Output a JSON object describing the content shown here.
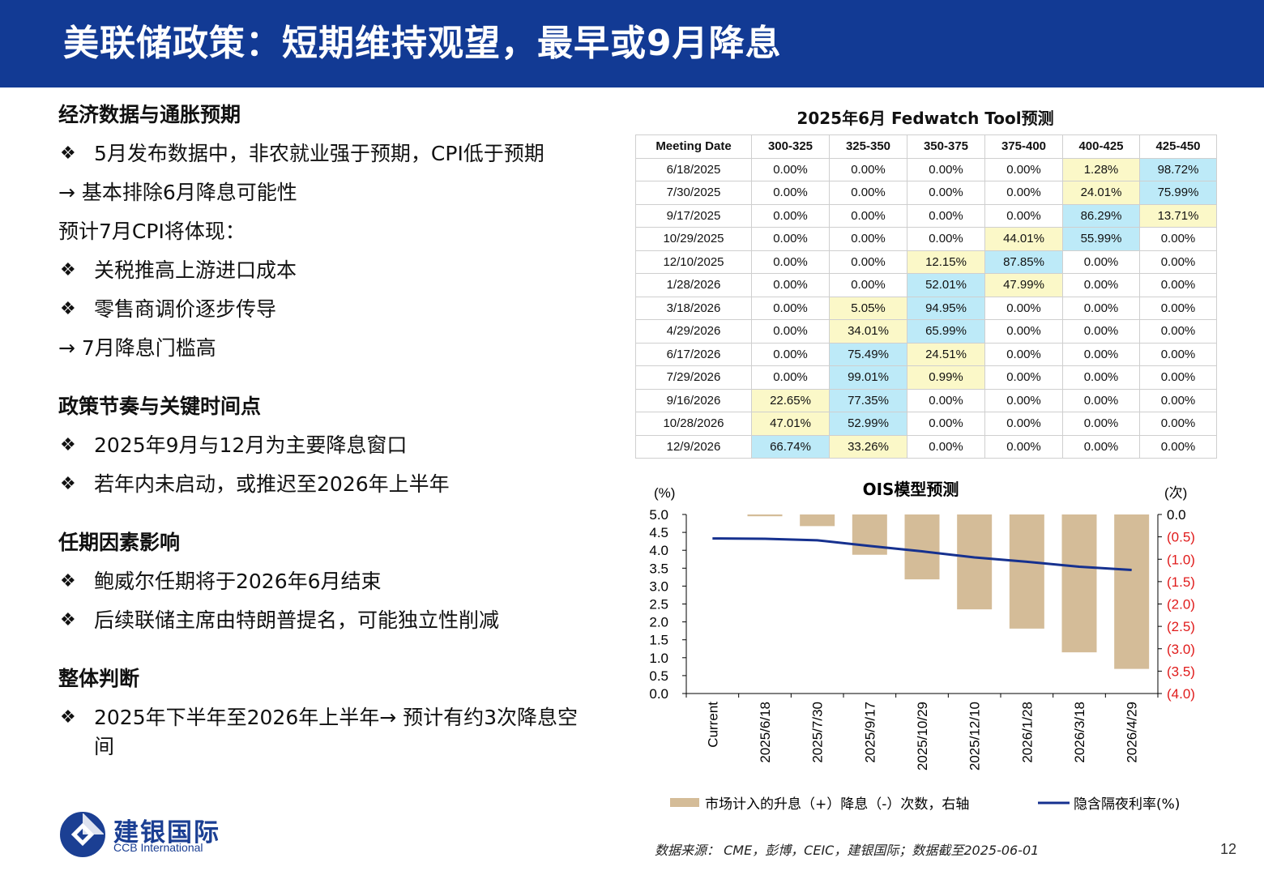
{
  "header": {
    "title": "美联储政策：短期维持观望，最早或9月降息"
  },
  "left": {
    "sec1": {
      "title": "经济数据与通胀预期",
      "b1": "5月发布数据中，非农就业强于预期，CPI低于预期",
      "l1": "→ 基本排除6月降息可能性",
      "l2": "预计7月CPI将体现：",
      "b2": "关税推高上游进口成本",
      "b3": " 零售商调价逐步传导",
      "l3": "→ 7月降息门槛高"
    },
    "sec2": {
      "title": "政策节奏与关键时间点",
      "b1": "2025年9月与12月为主要降息窗口",
      "b2": "若年内未启动，或推迟至2026年上半年"
    },
    "sec3": {
      "title": "任期因素影响",
      "b1": "鲍威尔任期将于2026年6月结束",
      "b2": "后续联储主席由特朗普提名，可能独立性削减"
    },
    "sec4": {
      "title": "整体判断",
      "b1": "2025年下半年至2026年上半年→ 预计有约3次降息空间"
    },
    "bullet_mark": "❖"
  },
  "fedwatch": {
    "title": "2025年6月 Fedwatch Tool预测",
    "headers": [
      "Meeting Date",
      "300-325",
      "325-350",
      "350-375",
      "375-400",
      "400-425",
      "425-450"
    ],
    "rows": [
      [
        "6/18/2025",
        "0.00%",
        "0.00%",
        "0.00%",
        "0.00%",
        "1.28%",
        "98.72%"
      ],
      [
        "7/30/2025",
        "0.00%",
        "0.00%",
        "0.00%",
        "0.00%",
        "24.01%",
        "75.99%"
      ],
      [
        "9/17/2025",
        "0.00%",
        "0.00%",
        "0.00%",
        "0.00%",
        "86.29%",
        "13.71%"
      ],
      [
        "10/29/2025",
        "0.00%",
        "0.00%",
        "0.00%",
        "44.01%",
        "55.99%",
        "0.00%"
      ],
      [
        "12/10/2025",
        "0.00%",
        "0.00%",
        "12.15%",
        "87.85%",
        "0.00%",
        "0.00%"
      ],
      [
        "1/28/2026",
        "0.00%",
        "0.00%",
        "52.01%",
        "47.99%",
        "0.00%",
        "0.00%"
      ],
      [
        "3/18/2026",
        "0.00%",
        "5.05%",
        "94.95%",
        "0.00%",
        "0.00%",
        "0.00%"
      ],
      [
        "4/29/2026",
        "0.00%",
        "34.01%",
        "65.99%",
        "0.00%",
        "0.00%",
        "0.00%"
      ],
      [
        "6/17/2026",
        "0.00%",
        "75.49%",
        "24.51%",
        "0.00%",
        "0.00%",
        "0.00%"
      ],
      [
        "7/29/2026",
        "0.00%",
        "99.01%",
        "0.99%",
        "0.00%",
        "0.00%",
        "0.00%"
      ],
      [
        "9/16/2026",
        "22.65%",
        "77.35%",
        "0.00%",
        "0.00%",
        "0.00%",
        "0.00%"
      ],
      [
        "10/28/2026",
        "47.01%",
        "52.99%",
        "0.00%",
        "0.00%",
        "0.00%",
        "0.00%"
      ],
      [
        "12/9/2026",
        "66.74%",
        "33.26%",
        "0.00%",
        "0.00%",
        "0.00%",
        "0.00%"
      ]
    ],
    "highlights": [
      [
        null,
        null,
        null,
        null,
        null,
        "y",
        "b"
      ],
      [
        null,
        null,
        null,
        null,
        null,
        "y",
        "b"
      ],
      [
        null,
        null,
        null,
        null,
        null,
        "b",
        "y"
      ],
      [
        null,
        null,
        null,
        null,
        "y",
        "b",
        null
      ],
      [
        null,
        null,
        null,
        "y",
        "b",
        null,
        null
      ],
      [
        null,
        null,
        null,
        "b",
        "y",
        null,
        null
      ],
      [
        null,
        null,
        "y",
        "b",
        null,
        null,
        null
      ],
      [
        null,
        null,
        "y",
        "b",
        null,
        null,
        null
      ],
      [
        null,
        null,
        "b",
        "y",
        null,
        null,
        null
      ],
      [
        null,
        null,
        "b",
        "y",
        null,
        null,
        null
      ],
      [
        null,
        "y",
        "b",
        null,
        null,
        null,
        null
      ],
      [
        null,
        "y",
        "b",
        null,
        null,
        null,
        null
      ],
      [
        null,
        "b",
        "y",
        null,
        null,
        null,
        null
      ]
    ],
    "highlight_colors": {
      "b": "#bdeaf8",
      "y": "#fbf8c8"
    }
  },
  "chart_data": {
    "type": "bar",
    "title": "OIS模型预测",
    "ylabel_left": "(%)",
    "ylabel_right": "(次)",
    "categories": [
      "Current",
      "2025/6/18",
      "2025/7/30",
      "2025/9/17",
      "2025/10/29",
      "2025/12/10",
      "2026/1/28",
      "2026/3/18",
      "2026/4/29"
    ],
    "series": [
      {
        "name": "市场计入的升息（+）降息（-）次数，右轴",
        "type": "bar",
        "axis": "right",
        "color": "#d4bc98",
        "values": [
          0,
          -0.04,
          -0.26,
          -0.9,
          -1.45,
          -2.12,
          -2.55,
          -3.08,
          -3.45
        ]
      },
      {
        "name": "隐含隔夜利率(%)",
        "type": "line",
        "axis": "left",
        "color": "#16318f",
        "values": [
          4.33,
          4.32,
          4.28,
          4.12,
          3.97,
          3.8,
          3.68,
          3.54,
          3.45
        ]
      }
    ],
    "ylim_left": [
      0,
      5.0
    ],
    "yticks_left": [
      "5.0",
      "4.5",
      "4.0",
      "3.5",
      "3.0",
      "2.5",
      "2.0",
      "1.5",
      "1.0",
      "0.5",
      "0.0"
    ],
    "ylim_right": [
      -4.0,
      0
    ],
    "yticks_right": [
      "0.0",
      "(0.5)",
      "(1.0)",
      "(1.5)",
      "(2.0)",
      "(2.5)",
      "(3.0)",
      "(3.5)",
      "(4.0)"
    ],
    "right_tick_color_negative": "#e01b1b",
    "grid": false,
    "legend_position": "bottom"
  },
  "footer": {
    "source": "数据来源：  CME，彭博，CEIC，建银国际；数据截至2025-06-01",
    "page": "12",
    "logo_cn": "建银国际",
    "logo_en": "CCB International",
    "logo_color": "#1b3f93"
  }
}
